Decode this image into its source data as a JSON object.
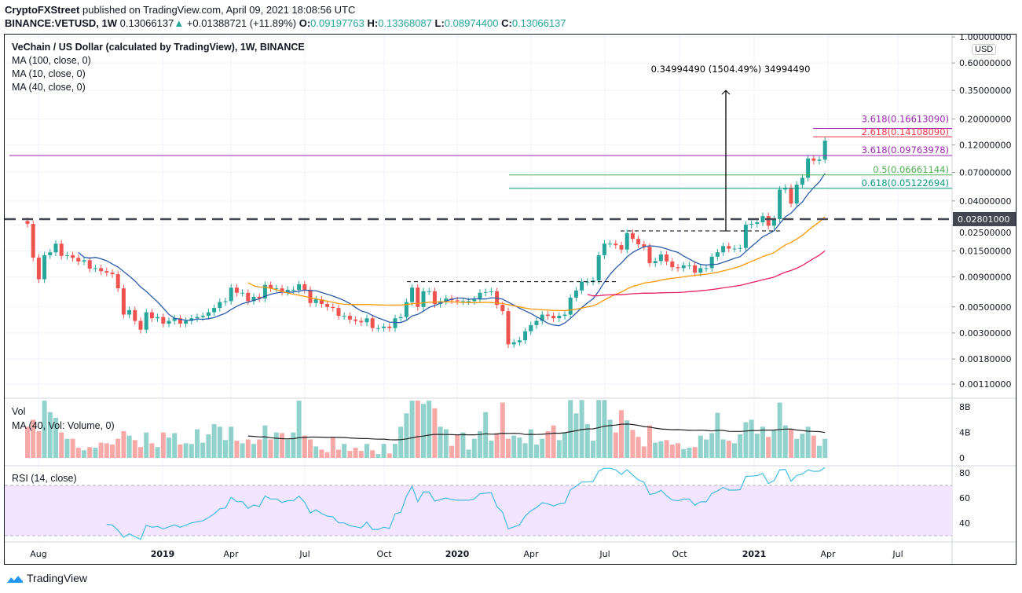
{
  "header": {
    "author": "CryptoFXStreet",
    "published": "published on TradingView.com, April 09, 2021 18:08:56 UTC",
    "symbol": "BINANCE:VETUSD, 1W",
    "last": "0.13066137",
    "change": "+0.01388721 (+11.89%)",
    "o_label": "O:",
    "o": "0.09197763",
    "h_label": "H:",
    "h": "0.13368087",
    "l_label": "L:",
    "l": "0.08974400",
    "c_label": "C:",
    "c": "0.13066137"
  },
  "legend": {
    "title": "VeChain / US Dollar (calculated by TradingView), 1W, BINANCE",
    "ma100": "MA (100, close, 0)",
    "ma10": "MA (10, close, 0)",
    "ma40": "MA (40, close, 0)",
    "vol": "Vol",
    "vol_ma": "MA (40, Vol: Volume, 0)",
    "rsi": "RSI (14, close)"
  },
  "price_axis": {
    "currency": "USD",
    "ticks": [
      "1.00000000",
      "0.60000000",
      "0.35000000",
      "0.20000000",
      "0.12000000",
      "0.07000000",
      "0.04000000",
      "0.02500000",
      "0.01500000",
      "0.00900000",
      "0.00500000",
      "0.00300000",
      "0.00180000",
      "0.00110000"
    ],
    "tick_values": [
      1,
      0.6,
      0.35,
      0.2,
      0.12,
      0.07,
      0.04,
      0.025,
      0.015,
      0.009,
      0.005,
      0.003,
      0.0018,
      0.0011
    ],
    "highlight": "0.02801000",
    "highlight_value": 0.02801,
    "scale": "log"
  },
  "volume_axis": {
    "ticks": [
      "8B",
      "4B",
      "0"
    ],
    "tick_values": [
      8,
      4,
      0
    ]
  },
  "rsi_axis": {
    "ticks": [
      "80",
      "60",
      "40"
    ],
    "tick_values": [
      80,
      60,
      40
    ],
    "band": [
      30,
      70
    ]
  },
  "time_axis": {
    "ticks": [
      "Aug",
      "2019",
      "Apr",
      "Jul",
      "Oct",
      "2020",
      "Apr",
      "Jul",
      "Oct",
      "2021",
      "Apr",
      "Jul"
    ]
  },
  "annotations": {
    "measure": "0.34994490 (1504.49%) 34994490",
    "measure_from": 0.0222,
    "measure_to": 0.35,
    "fib": [
      {
        "label": "3.618(0.16613090)",
        "value": 0.1661309,
        "color": "#9c27b0"
      },
      {
        "label": "2.618(0.14108090)",
        "value": 0.1410809,
        "color": "#f23645"
      },
      {
        "label": "3.618(0.09763978)",
        "value": 0.09763978,
        "color": "#9c27b0"
      },
      {
        "label": "0.5(0.06661144)",
        "value": 0.06661144,
        "color": "#4caf50"
      },
      {
        "label": "0.618(0.05122694)",
        "value": 0.05122694,
        "color": "#089981"
      }
    ],
    "range_lines": [
      0.0082,
      0.0222
    ]
  },
  "colors": {
    "up": "#26a69a",
    "down": "#ef5350",
    "ma10": "#2a5caa",
    "ma40": "#ff9800",
    "ma100": "#e91e63",
    "rsi": "#42bde6",
    "rsi_band": "#f3e5fd",
    "vol_ma": "#222222"
  },
  "footer": {
    "brand": "TradingView"
  },
  "chart_data": {
    "type": "candlestick",
    "interval": "1W",
    "first_open": 0.027,
    "closes": [
      0.0255,
      0.01315,
      0.0086,
      0.0138,
      0.0146,
      0.0173,
      0.0136,
      0.0138,
      0.0131,
      0.0122,
      0.0125,
      0.0106,
      0.0107,
      0.0101,
      0.0098,
      0.0095,
      0.0072,
      0.0043,
      0.0047,
      0.0038,
      0.0032,
      0.0045,
      0.004,
      0.0041,
      0.0036,
      0.0038,
      0.004,
      0.0036,
      0.0038,
      0.004,
      0.0041,
      0.0042,
      0.0045,
      0.0049,
      0.0055,
      0.0056,
      0.0073,
      0.0066,
      0.0066,
      0.0056,
      0.0061,
      0.0059,
      0.0077,
      0.0072,
      0.0072,
      0.0067,
      0.007,
      0.007,
      0.0078,
      0.007,
      0.0054,
      0.0058,
      0.0053,
      0.005,
      0.0049,
      0.0042,
      0.0042,
      0.0039,
      0.0038,
      0.0037,
      0.004,
      0.0033,
      0.0033,
      0.0034,
      0.0033,
      0.004,
      0.0041,
      0.0055,
      0.0073,
      0.005,
      0.0068,
      0.0068,
      0.0053,
      0.0056,
      0.0059,
      0.0057,
      0.0056,
      0.0056,
      0.0056,
      0.0058,
      0.0066,
      0.0067,
      0.0068,
      0.0052,
      0.0046,
      0.0024,
      0.0025,
      0.0026,
      0.0031,
      0.0035,
      0.0038,
      0.0043,
      0.0042,
      0.004,
      0.0042,
      0.0043,
      0.006,
      0.0069,
      0.0082,
      0.0082,
      0.0084,
      0.0138,
      0.0173,
      0.0173,
      0.0168,
      0.0154,
      0.0213,
      0.019,
      0.0171,
      0.0163,
      0.0118,
      0.0123,
      0.014,
      0.0122,
      0.0109,
      0.0107,
      0.0113,
      0.0113,
      0.0098,
      0.0107,
      0.0107,
      0.0134,
      0.0146,
      0.0165,
      0.0157,
      0.0157,
      0.0159,
      0.0251,
      0.0255,
      0.0263,
      0.0297,
      0.0246,
      0.028,
      0.05,
      0.052,
      0.038,
      0.055,
      0.063,
      0.092,
      0.088,
      0.09,
      0.13066137
    ],
    "volumes_B": [
      4.9,
      6.0,
      4.2,
      9,
      7.2,
      6.3,
      4.0,
      3.0,
      3.0,
      1.6,
      1.2,
      1.7,
      1.6,
      2.4,
      2.3,
      2.1,
      3.0,
      4.2,
      3.5,
      2.8,
      1.7,
      4.0,
      2.3,
      1.7,
      4.0,
      3.2,
      3.9,
      2.1,
      2.3,
      2.2,
      4.5,
      2.4,
      3.7,
      5.3,
      4.9,
      2.8,
      4.9,
      2.7,
      2.3,
      2.9,
      2.2,
      2.9,
      5.1,
      2.9,
      4.0,
      3.9,
      2.9,
      4.0,
      9,
      3.5,
      2.9,
      1.8,
      1.3,
      0.9,
      3.2,
      1.3,
      2.2,
      1.1,
      1.6,
      1.1,
      2.2,
      1.2,
      0.6,
      2.2,
      0.7,
      2.2,
      4.9,
      7.0,
      9,
      9,
      8.5,
      9,
      7.8,
      4.9,
      4.5,
      1.9,
      3.7,
      4.0,
      1.3,
      3.0,
      4.2,
      7.2,
      2.7,
      3.9,
      8.7,
      3.0,
      3.5,
      3.2,
      2.3,
      4.5,
      2.1,
      3.0,
      4.2,
      5.1,
      2.8,
      3.9,
      9.1,
      7.0,
      9.1,
      5.3,
      2.7,
      9.1,
      9.1,
      6.0,
      4.0,
      7.5,
      5.9,
      4.4,
      3.3,
      1.8,
      5.1,
      2.4,
      2.6,
      2.8,
      2.1,
      2.3,
      1.4,
      1.6,
      1.7,
      3.5,
      2.9,
      3.9,
      7.1,
      2.9,
      2.7,
      2.3,
      3.7,
      5.6,
      6.0,
      3.8,
      4.9,
      3.3,
      4.4,
      8.7,
      5.1,
      4.5,
      3.0,
      3.8,
      4.9,
      3.5,
      1.9,
      3.0
    ],
    "indicators": [
      "MA 10",
      "MA 40",
      "MA 100",
      "Volume MA 40",
      "RSI 14"
    ]
  }
}
